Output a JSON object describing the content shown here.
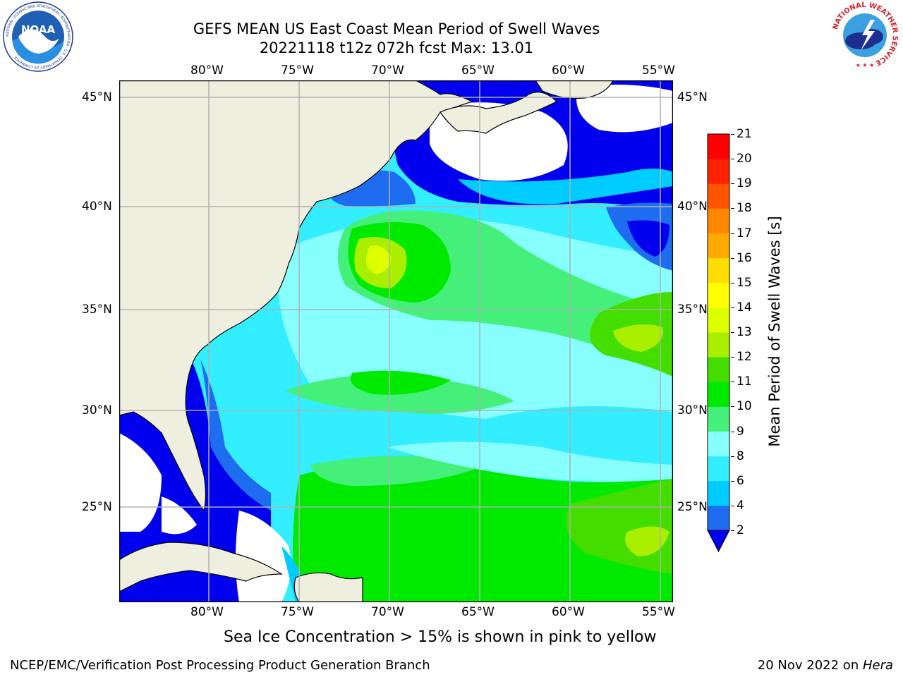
{
  "title": {
    "line1": "GEFS MEAN US East Coast Mean Period of Swell Waves",
    "line2": "20221118 t12z 072h fcst   Max: 13.01"
  },
  "map": {
    "lon_labels": [
      "80°W",
      "75°W",
      "70°W",
      "65°W",
      "60°W",
      "55°W"
    ],
    "lat_labels": [
      "45°N",
      "40°N",
      "35°N",
      "30°N",
      "25°N"
    ],
    "colors": {
      "land": "#efefdf",
      "coast": "#000000",
      "grid": "#b0b0b0"
    }
  },
  "colorbar": {
    "label": "Mean Period of Swell Waves [s]",
    "ticks": [
      "2",
      "4",
      "6",
      "8",
      "9",
      "10",
      "11",
      "12",
      "13",
      "14",
      "15",
      "16",
      "17",
      "18",
      "19",
      "20",
      "21"
    ],
    "colors": [
      "#1e6cf0",
      "#00ccff",
      "#33eeff",
      "#88ffff",
      "#44f079",
      "#00ea00",
      "#44dd00",
      "#aaee00",
      "#ddff00",
      "#ffff00",
      "#ffdd00",
      "#ffaa00",
      "#ff8800",
      "#ff5500",
      "#ff2200",
      "#ff0000"
    ],
    "extend_color": "#0000ee"
  },
  "note": "Sea Ice Concentration > 15% is shown in pink to yellow",
  "footer": {
    "left": "NCEP/EMC/Verification Post Processing Product Generation Branch",
    "date": "20 Nov 2022 on ",
    "machine": "Hera"
  },
  "logos": {
    "noaa_text": "NOAA",
    "noaa_ring_text": "NATIONAL OCEANIC AND ATMOSPHERIC ADMINISTRATION · U.S. DEPARTMENT OF COMMERCE",
    "nws_ring_text": "NATIONAL WEATHER SERVICE"
  }
}
